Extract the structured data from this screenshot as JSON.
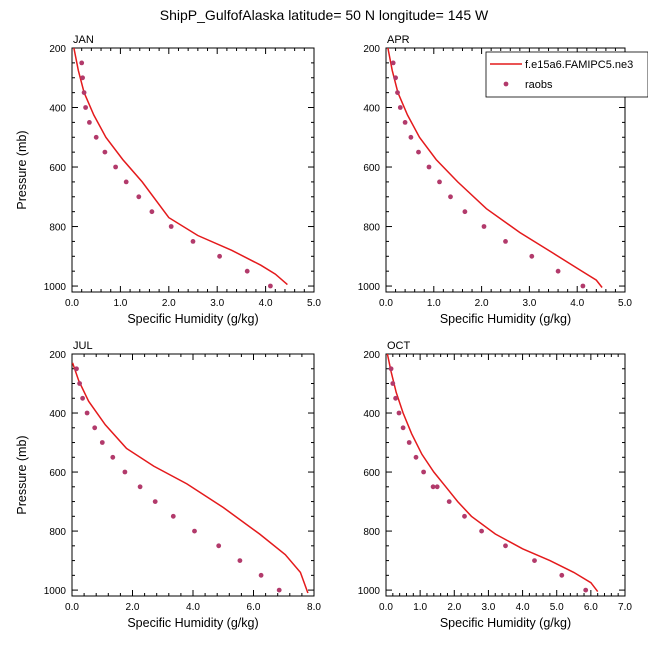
{
  "figure": {
    "title": "ShipP_GulfofAlaska  latitude= 50 N longitude= 145 W"
  },
  "legend": {
    "model_label": "f.e15a6.FAMIPC5.ne3",
    "obs_label": "raobs"
  },
  "colors": {
    "model_line": "#e41a1c",
    "obs_marker": "#b23a6b"
  },
  "chart_data": [
    {
      "type": "line",
      "panel": "JAN",
      "xlabel": "Specific Humidity (g/kg)",
      "ylabel": "Pressure (mb)",
      "xlim": [
        0,
        5
      ],
      "ylim": [
        200,
        1020
      ],
      "y_reversed": true,
      "xticks": [
        "0.0",
        "1.0",
        "2.0",
        "3.0",
        "4.0",
        "5.0"
      ],
      "yticks": [
        "200",
        "400",
        "600",
        "800",
        "1000"
      ],
      "series": [
        {
          "name": "f.e15a6.FAMIPC5.ne3",
          "style": "line",
          "x": [
            0.04,
            0.13,
            0.25,
            0.45,
            0.7,
            1.05,
            1.45,
            2.0,
            2.6,
            3.3,
            3.9,
            4.2,
            4.45
          ],
          "y": [
            200,
            275,
            350,
            425,
            500,
            575,
            650,
            770,
            830,
            880,
            930,
            960,
            995
          ]
        },
        {
          "name": "raobs",
          "style": "markers",
          "x": [
            0.2,
            0.22,
            0.25,
            0.28,
            0.36,
            0.5,
            0.68,
            0.9,
            1.12,
            1.38,
            1.65,
            2.05,
            2.5,
            3.05,
            3.62,
            4.1
          ],
          "y": [
            250,
            300,
            350,
            400,
            450,
            500,
            550,
            600,
            650,
            700,
            750,
            800,
            850,
            900,
            950,
            1000
          ]
        }
      ]
    },
    {
      "type": "line",
      "panel": "APR",
      "xlabel": "Specific Humidity (g/kg)",
      "ylabel": "",
      "xlim": [
        0,
        5
      ],
      "ylim": [
        200,
        1020
      ],
      "y_reversed": true,
      "xticks": [
        "0.0",
        "1.0",
        "2.0",
        "3.0",
        "4.0",
        "5.0"
      ],
      "yticks": [
        "200",
        "400",
        "600",
        "800",
        "1000"
      ],
      "series": [
        {
          "name": "f.e15a6.FAMIPC5.ne3",
          "style": "line",
          "x": [
            0.04,
            0.13,
            0.25,
            0.45,
            0.7,
            1.05,
            1.5,
            2.1,
            2.8,
            3.5,
            4.1,
            4.4,
            4.52
          ],
          "y": [
            200,
            275,
            350,
            425,
            500,
            575,
            650,
            740,
            820,
            890,
            950,
            980,
            1005
          ]
        },
        {
          "name": "raobs",
          "style": "markers",
          "x": [
            0.15,
            0.2,
            0.24,
            0.3,
            0.4,
            0.52,
            0.68,
            0.9,
            1.12,
            1.35,
            1.65,
            2.05,
            2.5,
            3.05,
            3.6,
            4.12
          ],
          "y": [
            250,
            300,
            350,
            400,
            450,
            500,
            550,
            600,
            650,
            700,
            750,
            800,
            850,
            900,
            950,
            1000
          ]
        }
      ]
    },
    {
      "type": "line",
      "panel": "JUL",
      "xlabel": "Specific Humidity (g/kg)",
      "ylabel": "Pressure (mb)",
      "xlim": [
        0,
        8
      ],
      "ylim": [
        200,
        1020
      ],
      "y_reversed": true,
      "xticks": [
        "0.0",
        "2.0",
        "4.0",
        "6.0",
        "8.0"
      ],
      "yticks": [
        "200",
        "400",
        "600",
        "800",
        "1000"
      ],
      "series": [
        {
          "name": "f.e15a6.FAMIPC5.ne3",
          "style": "line",
          "x": [
            0.02,
            0.22,
            0.55,
            1.1,
            1.8,
            2.7,
            3.8,
            5.0,
            6.2,
            7.05,
            7.55,
            7.8
          ],
          "y": [
            230,
            290,
            360,
            440,
            520,
            580,
            640,
            720,
            810,
            880,
            940,
            1010
          ]
        },
        {
          "name": "raobs",
          "style": "markers",
          "x": [
            0.15,
            0.25,
            0.35,
            0.5,
            0.75,
            1.0,
            1.35,
            1.75,
            2.25,
            2.75,
            3.35,
            4.05,
            4.85,
            5.55,
            6.25,
            6.85
          ],
          "y": [
            250,
            300,
            350,
            400,
            450,
            500,
            550,
            600,
            650,
            700,
            750,
            800,
            850,
            900,
            950,
            1000
          ]
        }
      ]
    },
    {
      "type": "line",
      "panel": "OCT",
      "xlabel": "Specific Humidity (g/kg)",
      "ylabel": "",
      "xlim": [
        0,
        7
      ],
      "ylim": [
        200,
        1020
      ],
      "y_reversed": true,
      "xticks": [
        "0.0",
        "1.0",
        "2.0",
        "3.0",
        "4.0",
        "5.0",
        "6.0",
        "7.0"
      ],
      "yticks": [
        "200",
        "400",
        "600",
        "800",
        "1000"
      ],
      "series": [
        {
          "name": "f.e15a6.FAMIPC5.ne3",
          "style": "line",
          "x": [
            0.04,
            0.15,
            0.3,
            0.5,
            0.75,
            1.05,
            1.4,
            1.75,
            2.1,
            2.5,
            3.2,
            4.0,
            4.8,
            5.5,
            6.0,
            6.2
          ],
          "y": [
            200,
            260,
            330,
            400,
            470,
            540,
            600,
            650,
            700,
            750,
            810,
            860,
            900,
            940,
            975,
            1005
          ]
        },
        {
          "name": "raobs",
          "style": "markers",
          "x": [
            0.15,
            0.2,
            0.28,
            0.38,
            0.5,
            0.68,
            0.88,
            1.1,
            1.38,
            1.5,
            1.85,
            2.3,
            2.8,
            3.5,
            4.35,
            5.15,
            5.85
          ],
          "y": [
            250,
            300,
            350,
            400,
            450,
            500,
            550,
            600,
            650,
            650,
            700,
            750,
            800,
            850,
            900,
            950,
            1000
          ]
        }
      ]
    }
  ]
}
